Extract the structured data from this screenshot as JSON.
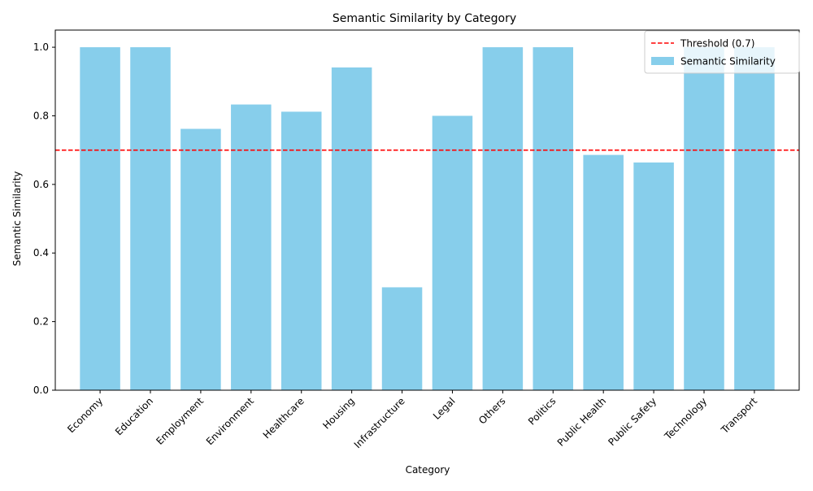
{
  "chart_data": {
    "type": "bar",
    "title": "Semantic Similarity by Category",
    "xlabel": "Category",
    "ylabel": "Semantic Similarity",
    "categories": [
      "Economy",
      "Education",
      "Employment",
      "Environment",
      "Healthcare",
      "Housing",
      "Infrastructure",
      "Legal",
      "Others",
      "Politics",
      "Public Health",
      "Public Safety",
      "Technology",
      "Transport"
    ],
    "series": [
      {
        "name": "Semantic Similarity",
        "color": "#87ceeb",
        "values": [
          1.0,
          1.0,
          0.762,
          0.833,
          0.812,
          0.941,
          0.3,
          0.8,
          1.0,
          1.0,
          0.686,
          0.664,
          1.0,
          1.0
        ]
      }
    ],
    "threshold": {
      "label": "Threshold (0.7)",
      "value": 0.7,
      "color": "#ff0000",
      "style": "dashed"
    },
    "ylim": [
      0,
      1.05
    ],
    "yticks": [
      "0.0",
      "0.2",
      "0.4",
      "0.6",
      "0.8",
      "1.0"
    ],
    "grid": false,
    "legend_position": "top-right"
  }
}
